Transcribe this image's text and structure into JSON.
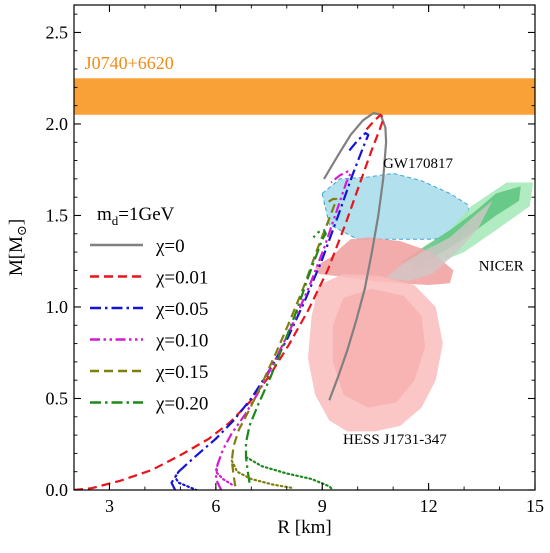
{
  "chart_data": {
    "type": "line",
    "title": "",
    "xlabel": "R [km]",
    "ylabel_main": "M[M",
    "ylabel_sub": "⊙",
    "ylabel_close": "]",
    "xlim": [
      2,
      15
    ],
    "ylim": [
      0,
      2.65
    ],
    "xticks": [
      3,
      6,
      9,
      12,
      15
    ],
    "yticks": [
      0.0,
      0.5,
      1.0,
      1.5,
      2.0,
      2.5
    ],
    "xtick_labels": [
      "3",
      "6",
      "9",
      "12",
      "15"
    ],
    "ytick_labels": [
      "0.0",
      "0.5",
      "1.0",
      "1.5",
      "2.0",
      "2.5"
    ],
    "grid": false,
    "legend_position": "center-left",
    "legend_title_main": "m",
    "legend_title_sub": "d",
    "legend_title_rest": "=1GeV",
    "series": [
      {
        "name": "χ=0",
        "color": "#808080",
        "dash": "solid",
        "points": [
          [
            9.2,
            0.49
          ],
          [
            9.45,
            0.62
          ],
          [
            9.7,
            0.76
          ],
          [
            9.95,
            0.92
          ],
          [
            10.2,
            1.1
          ],
          [
            10.4,
            1.3
          ],
          [
            10.58,
            1.5
          ],
          [
            10.72,
            1.7
          ],
          [
            10.8,
            1.9
          ],
          [
            10.78,
            1.98
          ],
          [
            10.65,
            2.05
          ],
          [
            10.45,
            2.06
          ],
          [
            10.15,
            2.02
          ],
          [
            9.8,
            1.94
          ],
          [
            9.45,
            1.83
          ],
          [
            9.05,
            1.7
          ]
        ]
      },
      {
        "name": "χ=0.01",
        "color": "#e8141b",
        "dash": "dashed",
        "points": [
          [
            2.0,
            0.0
          ],
          [
            2.5,
            0.01
          ],
          [
            3.3,
            0.05
          ],
          [
            4.2,
            0.11
          ],
          [
            5.0,
            0.19
          ],
          [
            5.8,
            0.28
          ],
          [
            6.4,
            0.37
          ],
          [
            6.95,
            0.48
          ],
          [
            7.5,
            0.62
          ],
          [
            8.05,
            0.79
          ],
          [
            8.6,
            0.98
          ],
          [
            9.15,
            1.2
          ],
          [
            9.65,
            1.45
          ],
          [
            10.05,
            1.67
          ],
          [
            10.4,
            1.86
          ],
          [
            10.62,
            1.97
          ],
          [
            10.73,
            2.03
          ],
          [
            10.65,
            2.05
          ],
          [
            10.48,
            2.02
          ],
          [
            10.2,
            1.96
          ]
        ]
      },
      {
        "name": "χ=0.05",
        "color": "#1414d8",
        "dash": "dashdot",
        "points": [
          [
            4.85,
            0.0
          ],
          [
            4.75,
            0.04
          ],
          [
            4.95,
            0.1
          ],
          [
            5.4,
            0.18
          ],
          [
            6.0,
            0.28
          ],
          [
            6.5,
            0.38
          ],
          [
            7.0,
            0.5
          ],
          [
            7.5,
            0.65
          ],
          [
            8.0,
            0.82
          ],
          [
            8.5,
            1.03
          ],
          [
            9.0,
            1.26
          ],
          [
            9.45,
            1.5
          ],
          [
            9.85,
            1.72
          ],
          [
            10.15,
            1.87
          ],
          [
            10.3,
            1.94
          ],
          [
            10.22,
            1.95
          ],
          [
            10.0,
            1.91
          ],
          [
            9.7,
            1.84
          ]
        ]
      },
      {
        "name": "χ=0.10",
        "color": "#d41ad4",
        "dash": "dashdotdot",
        "points": [
          [
            6.15,
            0.0
          ],
          [
            6.0,
            0.06
          ],
          [
            6.05,
            0.14
          ],
          [
            6.2,
            0.22
          ],
          [
            6.45,
            0.31
          ],
          [
            6.85,
            0.42
          ],
          [
            7.25,
            0.55
          ],
          [
            7.7,
            0.72
          ],
          [
            8.2,
            0.92
          ],
          [
            8.65,
            1.12
          ],
          [
            9.05,
            1.32
          ],
          [
            9.4,
            1.52
          ],
          [
            9.68,
            1.68
          ],
          [
            9.8,
            1.73
          ],
          [
            9.72,
            1.74
          ],
          [
            9.5,
            1.72
          ],
          [
            9.25,
            1.68
          ]
        ]
      },
      {
        "name": "χ=0.15",
        "color": "#7f7f10",
        "dash": "dashed",
        "points": [
          [
            6.55,
            0.02
          ],
          [
            6.5,
            0.08
          ],
          [
            6.45,
            0.16
          ],
          [
            6.5,
            0.24
          ],
          [
            6.65,
            0.33
          ],
          [
            6.95,
            0.44
          ],
          [
            7.3,
            0.58
          ],
          [
            7.7,
            0.75
          ],
          [
            8.1,
            0.93
          ],
          [
            8.5,
            1.12
          ],
          [
            8.85,
            1.31
          ],
          [
            9.15,
            1.46
          ],
          [
            9.35,
            1.56
          ],
          [
            9.4,
            1.59
          ],
          [
            9.3,
            1.59
          ],
          [
            9.05,
            1.56
          ]
        ]
      },
      {
        "name": "χ=0.20",
        "color": "#1a8a1a",
        "dash": "dashdot",
        "points": [
          [
            6.95,
            0.04
          ],
          [
            6.9,
            0.1
          ],
          [
            6.85,
            0.18
          ],
          [
            6.85,
            0.26
          ],
          [
            6.95,
            0.35
          ],
          [
            7.2,
            0.47
          ],
          [
            7.55,
            0.62
          ],
          [
            7.9,
            0.79
          ],
          [
            8.3,
            0.99
          ],
          [
            8.6,
            1.16
          ],
          [
            8.85,
            1.29
          ],
          [
            9.0,
            1.37
          ],
          [
            9.1,
            1.4
          ],
          [
            9.05,
            1.42
          ],
          [
            8.9,
            1.41
          ],
          [
            8.75,
            1.38
          ]
        ]
      },
      {
        "name": "",
        "color": "#1414d8",
        "dash": "dotted",
        "points": [
          [
            4.95,
            0.1
          ],
          [
            4.85,
            0.07
          ],
          [
            4.95,
            0.04
          ],
          [
            5.2,
            0.02
          ],
          [
            5.45,
            0.0
          ]
        ]
      },
      {
        "name": "",
        "color": "#d41ad4",
        "dash": "dotted",
        "points": [
          [
            6.05,
            0.14
          ],
          [
            6.0,
            0.1
          ],
          [
            6.2,
            0.06
          ],
          [
            6.45,
            0.03
          ]
        ]
      },
      {
        "name": "",
        "color": "#7f7f10",
        "dash": "dotted",
        "points": [
          [
            6.45,
            0.16
          ],
          [
            6.6,
            0.1
          ],
          [
            7.0,
            0.06
          ],
          [
            7.6,
            0.03
          ],
          [
            8.2,
            0.01
          ]
        ]
      },
      {
        "name": "",
        "color": "#1a8a1a",
        "dash": "dotted",
        "points": [
          [
            6.85,
            0.18
          ],
          [
            7.3,
            0.13
          ],
          [
            8.0,
            0.09
          ],
          [
            8.7,
            0.06
          ],
          [
            9.2,
            0.02
          ],
          [
            9.3,
            0.0
          ]
        ]
      }
    ],
    "regions": [
      {
        "name": "J0740+6620",
        "color": "#f9a036",
        "opacity": 1,
        "label_color": "#f08c18",
        "polygon": [
          [
            2.0,
            2.05
          ],
          [
            15.0,
            2.05
          ],
          [
            15.0,
            2.25
          ],
          [
            2.0,
            2.25
          ]
        ]
      },
      {
        "name": "GW170817",
        "color": "#9fd8e8",
        "stroke": "#3fa7d6",
        "opacity": 0.8,
        "label_color": "#000000",
        "polygon": [
          [
            9.0,
            1.62
          ],
          [
            9.5,
            1.7
          ],
          [
            10.3,
            1.71
          ],
          [
            11.0,
            1.73
          ],
          [
            11.8,
            1.69
          ],
          [
            12.6,
            1.62
          ],
          [
            13.1,
            1.56
          ],
          [
            13.2,
            1.46
          ],
          [
            12.9,
            1.38
          ],
          [
            12.0,
            1.37
          ],
          [
            11.0,
            1.37
          ],
          [
            10.0,
            1.37
          ],
          [
            9.2,
            1.45
          ]
        ]
      },
      {
        "name": "",
        "color": "#a2e7b6",
        "opacity": 0.85,
        "polygon": [
          [
            12.4,
            1.38
          ],
          [
            13.2,
            1.55
          ],
          [
            14.2,
            1.68
          ],
          [
            14.95,
            1.68
          ],
          [
            14.85,
            1.55
          ],
          [
            13.9,
            1.42
          ],
          [
            13.0,
            1.3
          ],
          [
            12.0,
            1.22
          ],
          [
            11.5,
            1.2
          ],
          [
            11.8,
            1.28
          ]
        ]
      },
      {
        "name": "",
        "color": "#5cc47e",
        "opacity": 0.85,
        "polygon": [
          [
            11.2,
            1.24
          ],
          [
            11.8,
            1.32
          ],
          [
            12.6,
            1.42
          ],
          [
            13.3,
            1.52
          ],
          [
            13.9,
            1.62
          ],
          [
            14.6,
            1.66
          ],
          [
            14.55,
            1.58
          ],
          [
            13.9,
            1.5
          ],
          [
            13.2,
            1.4
          ],
          [
            12.4,
            1.3
          ],
          [
            11.7,
            1.23
          ]
        ]
      },
      {
        "name": "NICER",
        "color": "#f2a3a3",
        "opacity": 0.9,
        "label_color": "#000000",
        "polygon": [
          [
            9.5,
            1.32
          ],
          [
            9.8,
            1.37
          ],
          [
            10.3,
            1.38
          ],
          [
            11.2,
            1.36
          ],
          [
            12.1,
            1.3
          ],
          [
            12.7,
            1.2
          ],
          [
            12.6,
            1.13
          ],
          [
            12.0,
            1.12
          ],
          [
            11.2,
            1.13
          ],
          [
            10.5,
            1.14
          ],
          [
            9.8,
            1.16
          ],
          [
            8.9,
            1.18
          ],
          [
            8.8,
            1.22
          ],
          [
            9.3,
            1.28
          ]
        ]
      },
      {
        "name": "",
        "color": "#cfc7c7",
        "opacity": 0.8,
        "polygon": [
          [
            10.8,
            1.16
          ],
          [
            11.3,
            1.24
          ],
          [
            12.0,
            1.32
          ],
          [
            12.6,
            1.38
          ],
          [
            13.3,
            1.5
          ],
          [
            13.8,
            1.58
          ],
          [
            13.4,
            1.43
          ],
          [
            12.8,
            1.3
          ],
          [
            12.1,
            1.18
          ],
          [
            11.4,
            1.14
          ]
        ]
      },
      {
        "name": "HESS J1731-347",
        "color": "#fabcbc",
        "opacity": 0.85,
        "label_color": "#000000",
        "polygon": [
          [
            8.7,
            0.95
          ],
          [
            8.9,
            1.12
          ],
          [
            9.6,
            1.18
          ],
          [
            10.6,
            1.17
          ],
          [
            11.6,
            1.12
          ],
          [
            12.2,
            1.0
          ],
          [
            12.4,
            0.8
          ],
          [
            12.2,
            0.6
          ],
          [
            11.8,
            0.45
          ],
          [
            11.2,
            0.35
          ],
          [
            10.5,
            0.32
          ],
          [
            9.7,
            0.32
          ],
          [
            9.2,
            0.38
          ],
          [
            8.8,
            0.52
          ],
          [
            8.6,
            0.72
          ]
        ]
      },
      {
        "name": "",
        "color": "#f6a6a6",
        "opacity": 0.6,
        "polygon": [
          [
            9.3,
            0.9
          ],
          [
            9.6,
            1.05
          ],
          [
            10.4,
            1.1
          ],
          [
            11.3,
            1.06
          ],
          [
            11.8,
            0.95
          ],
          [
            11.9,
            0.78
          ],
          [
            11.6,
            0.6
          ],
          [
            11.1,
            0.48
          ],
          [
            10.3,
            0.45
          ],
          [
            9.6,
            0.52
          ],
          [
            9.3,
            0.7
          ]
        ]
      }
    ]
  }
}
